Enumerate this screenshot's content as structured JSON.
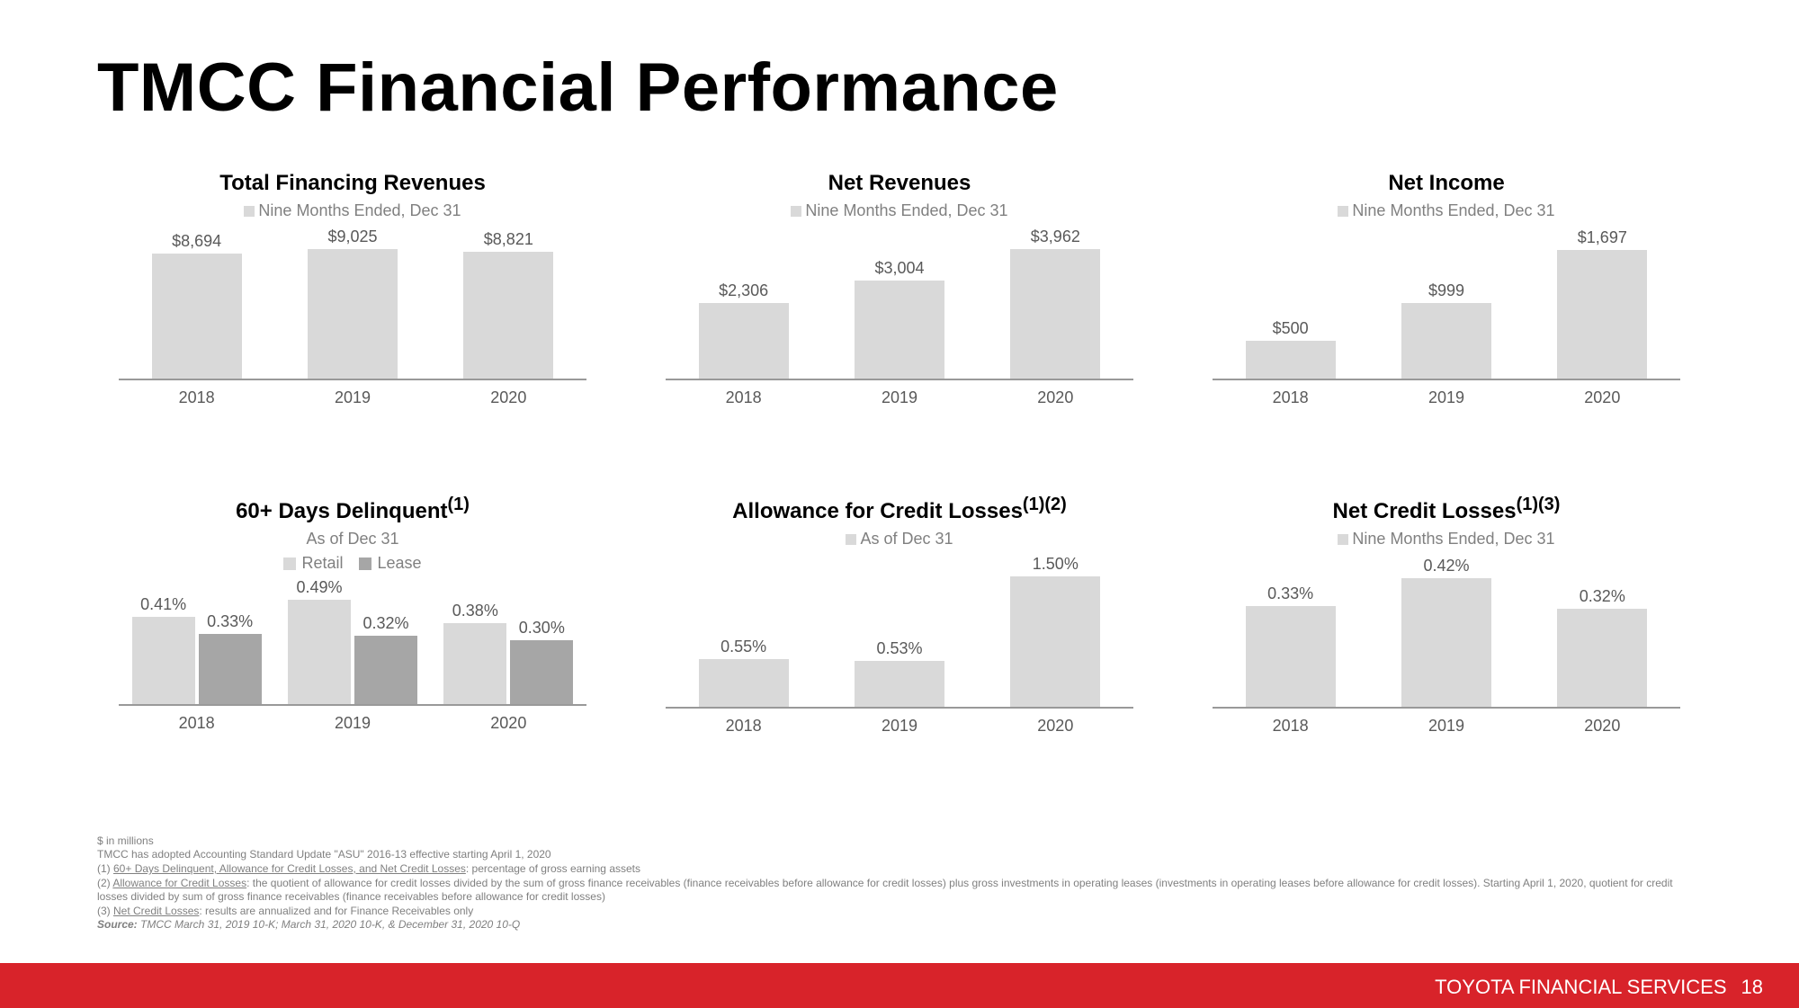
{
  "background_color": "#ffffff",
  "title": "TMCC Financial Performance",
  "title_fontsize": 76,
  "title_color": "#000000",
  "bar_color_light": "#d9d9d9",
  "bar_color_dark": "#a6a6a6",
  "axis_color": "#999999",
  "label_color": "#595959",
  "subtitle_color": "#808080",
  "charts": {
    "tfr": {
      "title": "Total Financing Revenues",
      "subtitle": "Nine Months Ended, Dec 31",
      "type": "bar",
      "categories": [
        "2018",
        "2019",
        "2020"
      ],
      "values": [
        8694,
        9025,
        8821
      ],
      "value_labels": [
        "$8,694",
        "$9,025",
        "$8,821"
      ],
      "ylim": [
        0,
        10000
      ]
    },
    "nr": {
      "title": "Net Revenues",
      "subtitle": "Nine Months Ended, Dec 31",
      "type": "bar",
      "categories": [
        "2018",
        "2019",
        "2020"
      ],
      "values": [
        2306,
        3004,
        3962
      ],
      "value_labels": [
        "$2,306",
        "$3,004",
        "$3,962"
      ],
      "ylim": [
        0,
        4400
      ]
    },
    "ni": {
      "title": "Net Income",
      "subtitle": "Nine Months Ended, Dec 31",
      "type": "bar",
      "categories": [
        "2018",
        "2019",
        "2020"
      ],
      "values": [
        500,
        999,
        1697
      ],
      "value_labels": [
        "$500",
        "$999",
        "$1,697"
      ],
      "ylim": [
        0,
        1900
      ]
    },
    "dd": {
      "title": "60+ Days Delinquent¹",
      "title_html": "60+ Days Delinquent<sup>(1)</sup>",
      "subtitle": "As of Dec 31",
      "type": "grouped-bar",
      "legend": [
        "Retail",
        "Lease"
      ],
      "legend_colors": [
        "#d9d9d9",
        "#a6a6a6"
      ],
      "categories": [
        "2018",
        "2019",
        "2020"
      ],
      "series": [
        {
          "name": "Retail",
          "values": [
            0.41,
            0.49,
            0.38
          ],
          "value_labels": [
            "0.41%",
            "0.49%",
            "0.38%"
          ],
          "color": "#d9d9d9"
        },
        {
          "name": "Lease",
          "values": [
            0.33,
            0.32,
            0.3
          ],
          "value_labels": [
            "0.33%",
            "0.32%",
            "0.30%"
          ],
          "color": "#a6a6a6"
        }
      ],
      "ylim": [
        0,
        0.55
      ]
    },
    "acl": {
      "title": "Allowance for Credit Losses¹²",
      "title_html": "Allowance for Credit Losses<sup>(1)(2)</sup>",
      "subtitle": "As of Dec 31",
      "type": "bar",
      "categories": [
        "2018",
        "2019",
        "2020"
      ],
      "values": [
        0.55,
        0.53,
        1.5
      ],
      "value_labels": [
        "0.55%",
        "0.53%",
        "1.50%"
      ],
      "ylim": [
        0,
        1.65
      ]
    },
    "ncl": {
      "title": "Net Credit Losses¹³",
      "title_html": "Net Credit Losses<sup>(1)(3)</sup>",
      "subtitle": "Nine Months Ended, Dec 31",
      "type": "bar",
      "categories": [
        "2018",
        "2019",
        "2020"
      ],
      "values": [
        0.33,
        0.42,
        0.32
      ],
      "value_labels": [
        "0.33%",
        "0.42%",
        "0.32%"
      ],
      "ylim": [
        0,
        0.47
      ]
    }
  },
  "footnotes": [
    "$ in millions",
    "TMCC has adopted Accounting Standard Update \"ASU\" 2016-13 effective starting April 1, 2020",
    "(1) 60+ Days Delinquent, Allowance for Credit Losses, and Net Credit Losses: percentage of gross earning assets",
    "(2) Allowance for Credit Losses: the quotient of allowance for credit losses divided by the sum of gross finance receivables (finance receivables before allowance for credit losses) plus gross investments in operating leases (investments in operating leases before allowance for credit losses). Starting April 1, 2020, quotient for credit losses divided by sum of gross finance receivables (finance receivables before allowance for credit losses)",
    "(3) Net Credit Losses: results are annualized and for Finance Receivables only"
  ],
  "source_label": "Source:",
  "source_text": " TMCC March 31, 2019 10-K; March 31, 2020 10-K, & December 31, 2020 10-Q",
  "footer": {
    "brand": "TOYOTA FINANCIAL SERVICES",
    "page": "18",
    "bar_color": "#d8232a",
    "text_color": "#ffffff"
  }
}
